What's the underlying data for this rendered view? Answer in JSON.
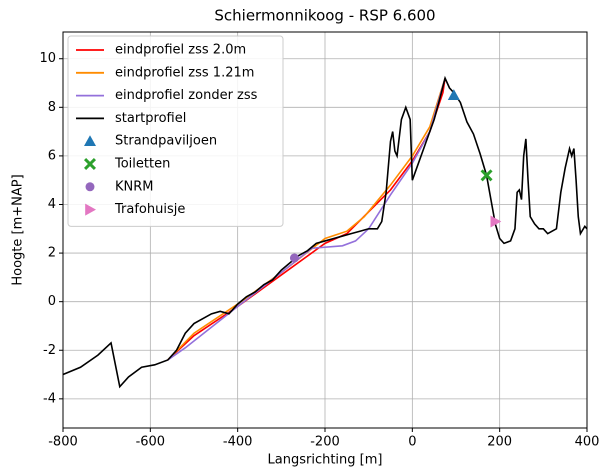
{
  "chart_data": {
    "type": "line",
    "title": "Schiermonnikoog - RSP 6.600",
    "xlabel": "Langsrichting [m]",
    "ylabel": "Hoogte [m+NAP]",
    "xlim": [
      -800,
      400
    ],
    "ylim": [
      -5.2,
      11.1
    ],
    "xticks": [
      -800,
      -600,
      -400,
      -200,
      0,
      200,
      400
    ],
    "yticks": [
      -4,
      -2,
      0,
      2,
      4,
      6,
      8,
      10
    ],
    "grid": true,
    "legend": "upper left",
    "series": [
      {
        "name": "eindprofiel zss 2.0m",
        "color": "#ff0000",
        "x": [
          -560,
          -500,
          -400,
          -300,
          -200,
          -150,
          -100,
          -50,
          0,
          40,
          70,
          75
        ],
        "values": [
          -2.4,
          -1.4,
          -0.2,
          1.1,
          2.4,
          2.8,
          3.7,
          4.6,
          5.8,
          7.0,
          8.6,
          9.2
        ]
      },
      {
        "name": "eindprofiel zss 1.21m",
        "color": "#ff8c00",
        "x": [
          -560,
          -500,
          -400,
          -300,
          -200,
          -150,
          -110,
          -50,
          0,
          40,
          75
        ],
        "values": [
          -2.4,
          -1.3,
          -0.1,
          1.2,
          2.6,
          2.9,
          3.5,
          4.8,
          6.0,
          7.2,
          9.2
        ]
      },
      {
        "name": "eindprofiel zonder zss",
        "color": "#9370db",
        "x": [
          -560,
          -520,
          -400,
          -300,
          -230,
          -160,
          -130,
          -100,
          -50,
          0,
          40,
          75
        ],
        "values": [
          -2.4,
          -1.9,
          -0.2,
          1.2,
          2.2,
          2.3,
          2.5,
          3.0,
          4.4,
          5.7,
          7.0,
          9.2
        ]
      },
      {
        "name": "startprofiel",
        "color": "#000000",
        "x": [
          -800,
          -760,
          -720,
          -690,
          -680,
          -670,
          -650,
          -620,
          -590,
          -560,
          -540,
          -520,
          -500,
          -480,
          -460,
          -440,
          -420,
          -400,
          -380,
          -360,
          -340,
          -320,
          -300,
          -280,
          -260,
          -240,
          -220,
          -200,
          -180,
          -160,
          -140,
          -120,
          -100,
          -80,
          -70,
          -60,
          -50,
          -45,
          -40,
          -35,
          -25,
          -15,
          -5,
          0,
          10,
          30,
          50,
          65,
          75,
          85,
          95,
          110,
          125,
          140,
          155,
          170,
          180,
          190,
          200,
          210,
          225,
          235,
          240,
          245,
          250,
          255,
          260,
          265,
          270,
          280,
          290,
          300,
          310,
          320,
          330,
          340,
          350,
          360,
          365,
          370,
          375,
          380,
          385,
          395,
          400
        ],
        "values": [
          -3.0,
          -2.7,
          -2.2,
          -1.7,
          -2.6,
          -3.5,
          -3.1,
          -2.7,
          -2.6,
          -2.4,
          -2.0,
          -1.3,
          -0.9,
          -0.7,
          -0.5,
          -0.4,
          -0.5,
          -0.1,
          0.2,
          0.4,
          0.7,
          0.9,
          1.3,
          1.6,
          1.9,
          2.1,
          2.4,
          2.5,
          2.6,
          2.7,
          2.8,
          2.9,
          3.0,
          3.0,
          3.3,
          4.5,
          6.6,
          7.0,
          6.2,
          6.0,
          7.5,
          8.0,
          7.5,
          5.0,
          5.5,
          6.5,
          7.5,
          8.5,
          9.2,
          8.8,
          8.6,
          8.2,
          7.4,
          6.9,
          6.1,
          5.2,
          4.2,
          3.2,
          2.6,
          2.4,
          2.5,
          3.0,
          4.5,
          4.6,
          4.2,
          6.0,
          6.7,
          5.0,
          3.5,
          3.2,
          3.0,
          3.0,
          2.8,
          2.9,
          3.0,
          4.5,
          5.5,
          6.3,
          6.0,
          6.3,
          5.0,
          3.5,
          2.8,
          3.1,
          3.0
        ]
      }
    ],
    "markers": [
      {
        "name": "Strandpaviljoen",
        "color": "#1f77b4",
        "marker": "^",
        "x": 95,
        "y": 8.5
      },
      {
        "name": "Toiletten",
        "color": "#2ca02c",
        "marker": "X",
        "x": 170,
        "y": 5.2
      },
      {
        "name": "KNRM",
        "color": "#9467bd",
        "marker": "o",
        "x": -270,
        "y": 1.8
      },
      {
        "name": "Trafohuisje",
        "color": "#e377c2",
        "marker": ">",
        "x": 190,
        "y": 3.3
      }
    ]
  }
}
